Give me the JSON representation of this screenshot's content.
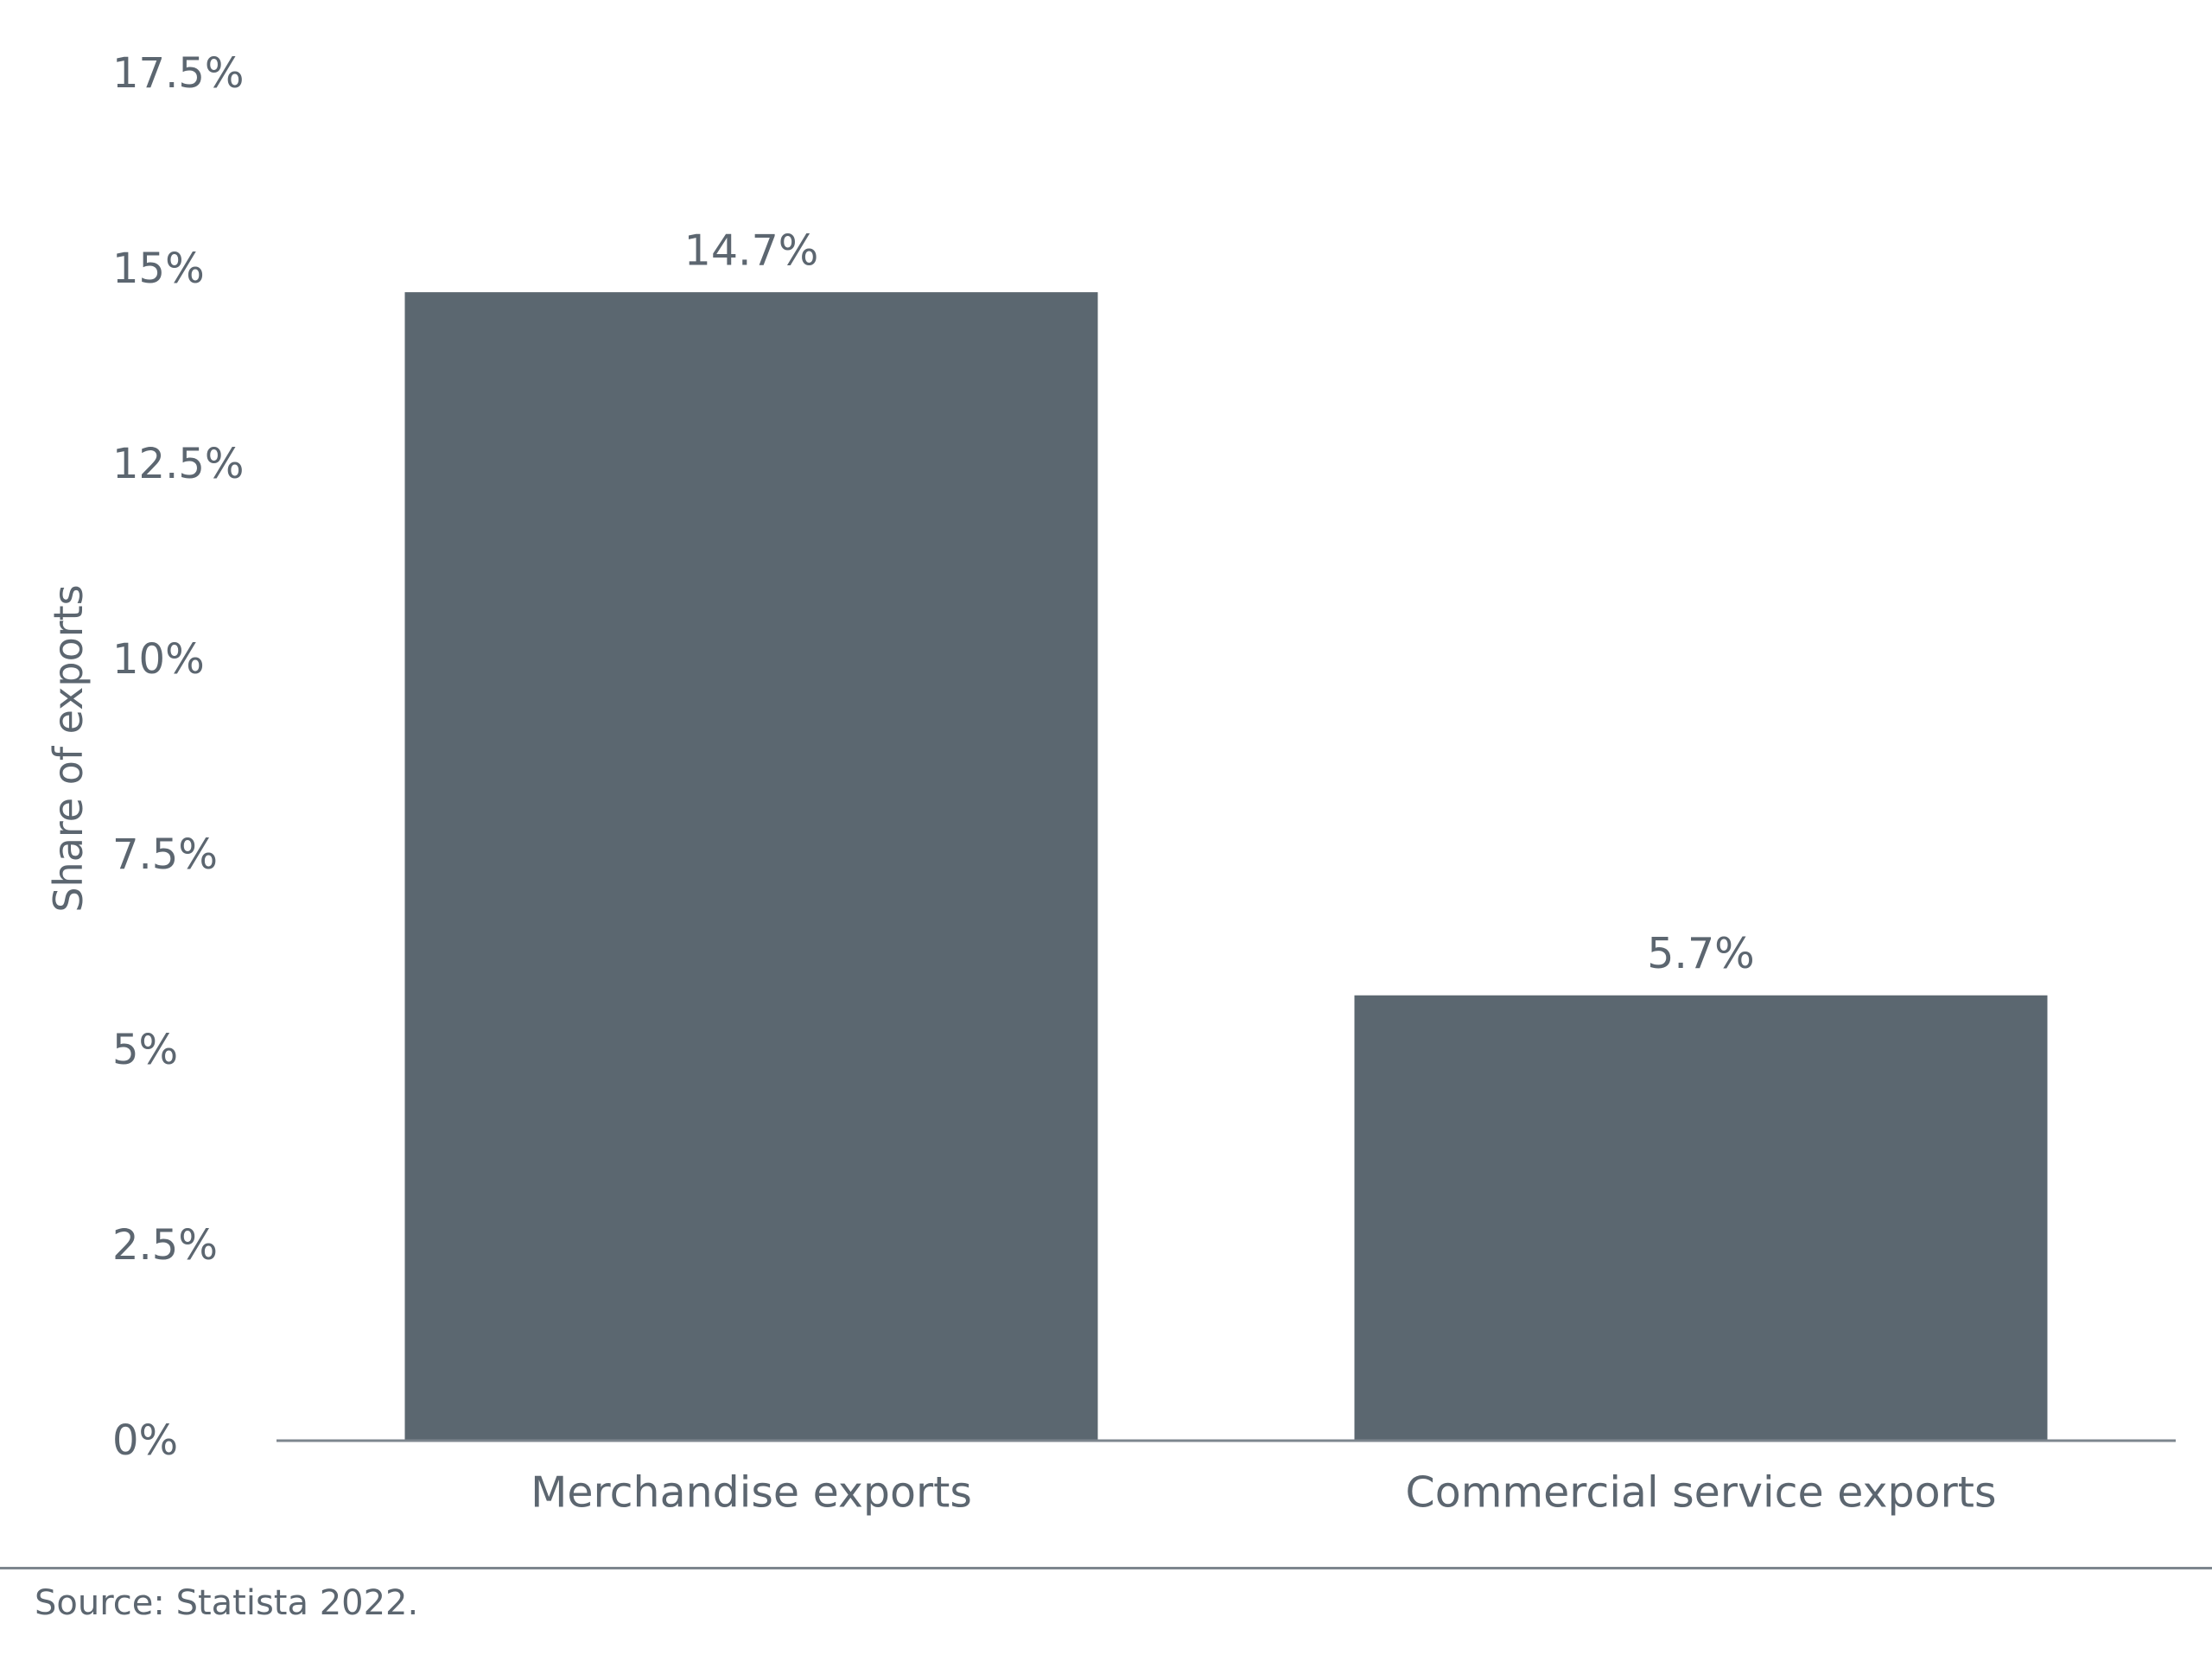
{
  "chart_data": {
    "type": "bar",
    "title": "",
    "xlabel": "",
    "ylabel": "Share of exports",
    "categories": [
      "Merchandise exports",
      "Commercial service exports"
    ],
    "values": [
      14.7,
      5.7
    ],
    "value_labels": [
      "14.7%",
      "5.7%"
    ],
    "ylim": [
      0,
      17.5
    ],
    "yticks": [
      0,
      2.5,
      5,
      7.5,
      10,
      12.5,
      15,
      17.5
    ],
    "ytick_labels": [
      "0%",
      "2.5%",
      "5%",
      "7.5%",
      "10%",
      "12.5%",
      "15%",
      "17.5%"
    ],
    "grid": false,
    "legend": "none",
    "bar_color": "#5b6770",
    "text_color": "#5c6670",
    "axis_color": "#7d868e"
  },
  "source": "Source: Statista 2022."
}
